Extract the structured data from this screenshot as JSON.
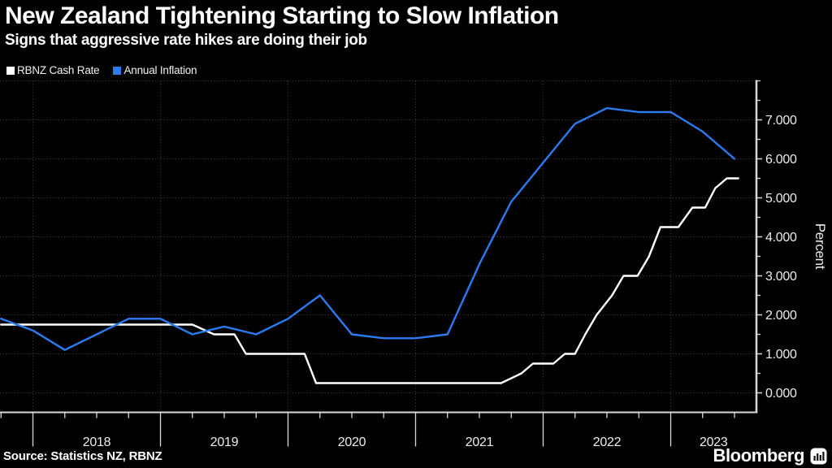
{
  "header": {
    "title": "New Zealand Tightening Starting to Slow Inflation",
    "subtitle": "Signs that aggressive rate hikes are doing their job"
  },
  "legend": [
    {
      "label": "RBNZ Cash Rate",
      "color": "#ffffff"
    },
    {
      "label": "Annual Inflation",
      "color": "#2b7bf2"
    }
  ],
  "footer": {
    "source": "Source: Statistics NZ, RBNZ",
    "brand": "Bloomberg",
    "brand_icon": "bar-chart-terminal-icon"
  },
  "colors": {
    "background": "#000000",
    "grid": "#414141",
    "axis": "#d9d9d9",
    "tick_label": "#ededed",
    "cash_rate_line": "#ffffff",
    "inflation_line": "#2b7bf2"
  },
  "chart_data": {
    "type": "line",
    "ylabel": "Percent",
    "ylabel_side": "right",
    "grid": "dotted",
    "legend_position": "top-left",
    "xlim": [
      2017.742,
      2023.672
    ],
    "ylim": [
      -0.5,
      8.0
    ],
    "y_ticks": [
      "0.000",
      "1.000",
      "2.000",
      "3.000",
      "4.000",
      "5.000",
      "6.000",
      "7.000"
    ],
    "y_minor_step": 0.5,
    "x_ticks": [
      "2018",
      "2019",
      "2020",
      "2021",
      "2022",
      "2023"
    ],
    "x_minor_step_years": 0.25,
    "series": [
      {
        "name": "RBNZ Cash Rate",
        "color": "#ffffff",
        "points": [
          [
            2017.75,
            1.75
          ],
          [
            2019.25,
            1.75
          ],
          [
            2019.42,
            1.5
          ],
          [
            2019.58,
            1.5
          ],
          [
            2019.67,
            1.0
          ],
          [
            2020.13,
            1.0
          ],
          [
            2020.22,
            0.25
          ],
          [
            2021.67,
            0.25
          ],
          [
            2021.83,
            0.5
          ],
          [
            2021.92,
            0.75
          ],
          [
            2022.08,
            0.75
          ],
          [
            2022.17,
            1.0
          ],
          [
            2022.25,
            1.0
          ],
          [
            2022.33,
            1.5
          ],
          [
            2022.42,
            2.0
          ],
          [
            2022.54,
            2.5
          ],
          [
            2022.63,
            3.0
          ],
          [
            2022.74,
            3.0
          ],
          [
            2022.83,
            3.5
          ],
          [
            2022.92,
            4.25
          ],
          [
            2023.06,
            4.25
          ],
          [
            2023.17,
            4.75
          ],
          [
            2023.27,
            4.75
          ],
          [
            2023.35,
            5.25
          ],
          [
            2023.44,
            5.5
          ],
          [
            2023.53,
            5.5
          ]
        ]
      },
      {
        "name": "Annual Inflation",
        "color": "#2b7bf2",
        "points": [
          [
            2017.75,
            1.9
          ],
          [
            2018.0,
            1.6
          ],
          [
            2018.25,
            1.1
          ],
          [
            2018.5,
            1.5
          ],
          [
            2018.75,
            1.9
          ],
          [
            2019.0,
            1.9
          ],
          [
            2019.25,
            1.5
          ],
          [
            2019.5,
            1.7
          ],
          [
            2019.75,
            1.5
          ],
          [
            2020.0,
            1.9
          ],
          [
            2020.25,
            2.5
          ],
          [
            2020.5,
            1.5
          ],
          [
            2020.75,
            1.4
          ],
          [
            2021.0,
            1.4
          ],
          [
            2021.25,
            1.5
          ],
          [
            2021.5,
            3.3
          ],
          [
            2021.75,
            4.9
          ],
          [
            2022.0,
            5.9
          ],
          [
            2022.25,
            6.9
          ],
          [
            2022.5,
            7.3
          ],
          [
            2022.75,
            7.2
          ],
          [
            2023.0,
            7.2
          ],
          [
            2023.25,
            6.7
          ],
          [
            2023.5,
            6.0
          ]
        ]
      }
    ]
  }
}
